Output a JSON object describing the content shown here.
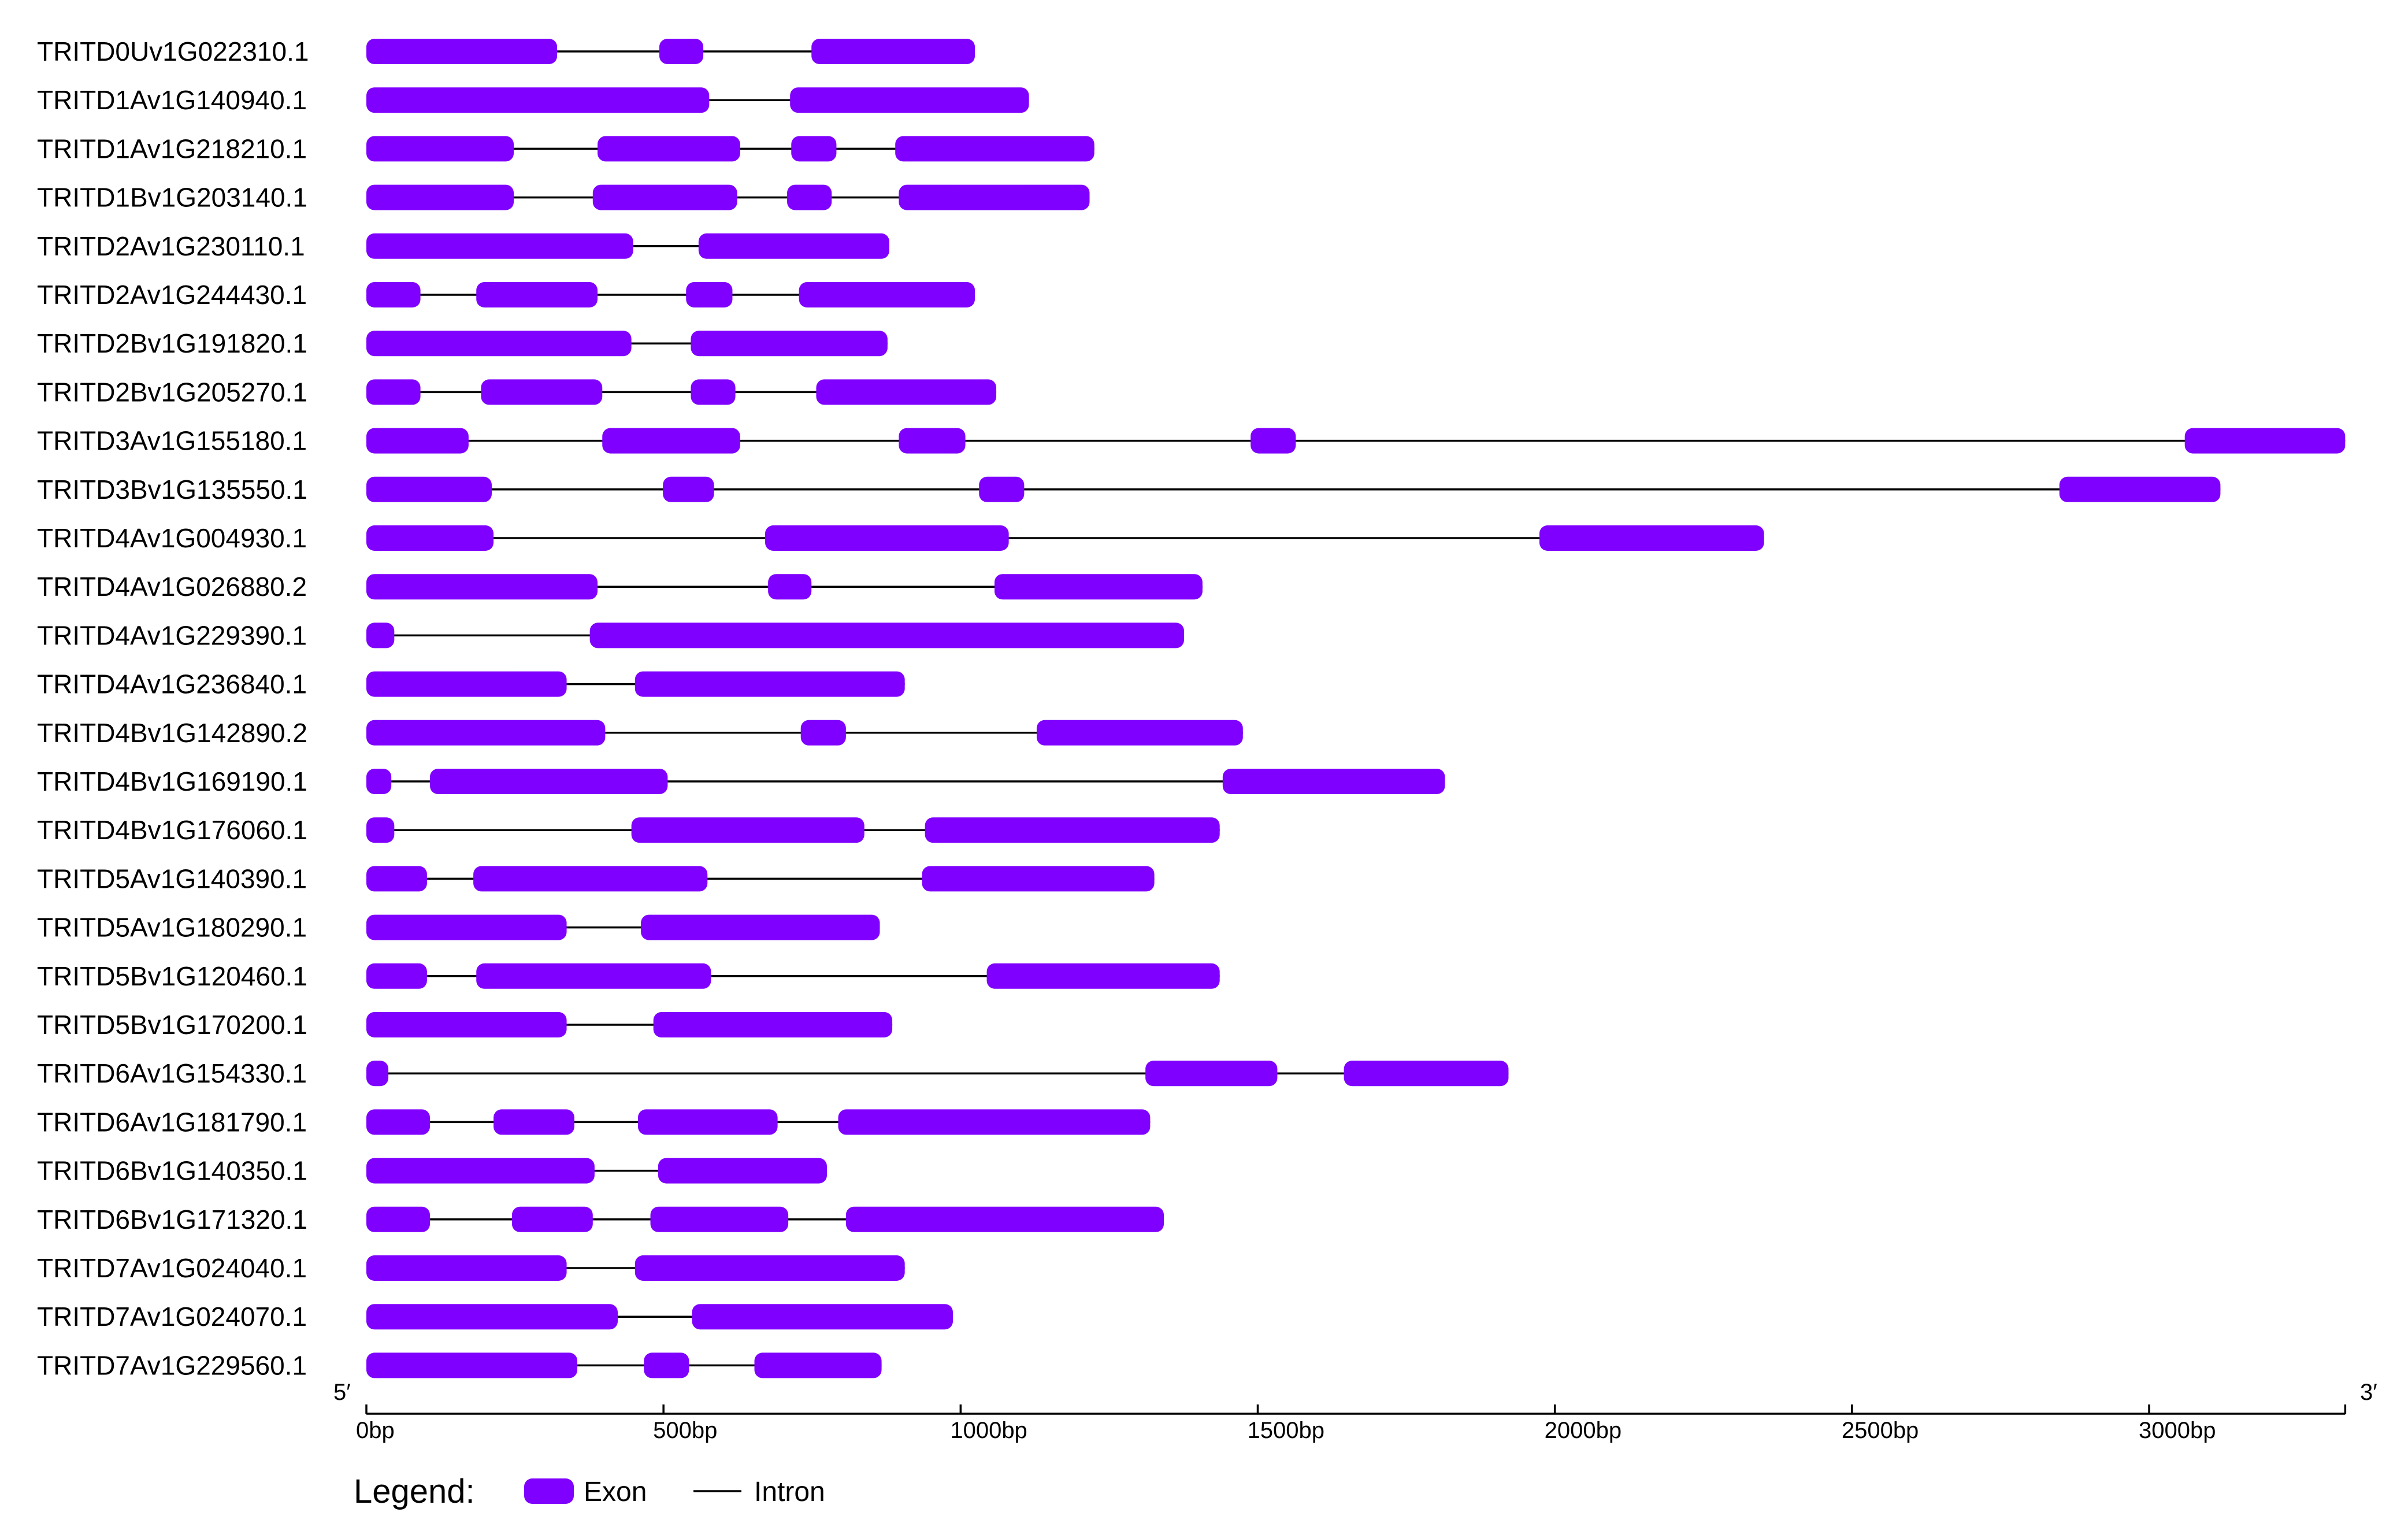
{
  "genes": [
    {
      "id": "TRITD0Uv1G022310.1",
      "exons": [
        [
          0,
          321
        ],
        [
          493,
          567
        ],
        [
          749,
          1024
        ]
      ]
    },
    {
      "id": "TRITD1Av1G140940.1",
      "exons": [
        [
          0,
          577
        ],
        [
          713,
          1115
        ]
      ]
    },
    {
      "id": "TRITD1Av1G218210.1",
      "exons": [
        [
          0,
          248
        ],
        [
          389,
          629
        ],
        [
          715,
          791
        ],
        [
          890,
          1225
        ]
      ]
    },
    {
      "id": "TRITD1Bv1G203140.1",
      "exons": [
        [
          0,
          248
        ],
        [
          381,
          624
        ],
        [
          708,
          783
        ],
        [
          896,
          1217
        ]
      ]
    },
    {
      "id": "TRITD2Av1G230110.1",
      "exons": [
        [
          0,
          449
        ],
        [
          559,
          880
        ]
      ]
    },
    {
      "id": "TRITD2Av1G244430.1",
      "exons": [
        [
          0,
          91
        ],
        [
          185,
          389
        ],
        [
          538,
          616
        ],
        [
          728,
          1024
        ]
      ]
    },
    {
      "id": "TRITD2Bv1G191820.1",
      "exons": [
        [
          0,
          446
        ],
        [
          546,
          877
        ]
      ]
    },
    {
      "id": "TRITD2Bv1G205270.1",
      "exons": [
        [
          0,
          91
        ],
        [
          193,
          397
        ],
        [
          546,
          621
        ],
        [
          757,
          1060
        ]
      ]
    },
    {
      "id": "TRITD3Av1G155180.1",
      "exons": [
        [
          0,
          172
        ],
        [
          397,
          629
        ],
        [
          896,
          1008
        ],
        [
          1488,
          1564
        ],
        [
          3060,
          3330
        ]
      ]
    },
    {
      "id": "TRITD3Bv1G135550.1",
      "exons": [
        [
          0,
          211
        ],
        [
          499,
          585
        ],
        [
          1031,
          1107
        ],
        [
          2849,
          3120
        ]
      ]
    },
    {
      "id": "TRITD4Av1G004930.1",
      "exons": [
        [
          0,
          214
        ],
        [
          671,
          1081
        ],
        [
          1974,
          2352
        ]
      ]
    },
    {
      "id": "TRITD4Av1G026880.2",
      "exons": [
        [
          0,
          389
        ],
        [
          676,
          749
        ],
        [
          1057,
          1407
        ]
      ]
    },
    {
      "id": "TRITD4Av1G229390.1",
      "exons": [
        [
          0,
          47
        ],
        [
          376,
          1376
        ]
      ]
    },
    {
      "id": "TRITD4Av1G236840.1",
      "exons": [
        [
          0,
          337
        ],
        [
          452,
          906
        ]
      ]
    },
    {
      "id": "TRITD4Bv1G142890.2",
      "exons": [
        [
          0,
          402
        ],
        [
          731,
          807
        ],
        [
          1128,
          1475
        ]
      ]
    },
    {
      "id": "TRITD4Bv1G169190.1",
      "exons": [
        [
          0,
          42
        ],
        [
          107,
          507
        ],
        [
          1441,
          1815
        ]
      ]
    },
    {
      "id": "TRITD4Bv1G176060.1",
      "exons": [
        [
          0,
          47
        ],
        [
          446,
          838
        ],
        [
          940,
          1436
        ]
      ]
    },
    {
      "id": "TRITD5Av1G140390.1",
      "exons": [
        [
          0,
          102
        ],
        [
          180,
          574
        ],
        [
          935,
          1326
        ]
      ]
    },
    {
      "id": "TRITD5Av1G180290.1",
      "exons": [
        [
          0,
          337
        ],
        [
          462,
          864
        ]
      ]
    },
    {
      "id": "TRITD5Bv1G120460.1",
      "exons": [
        [
          0,
          102
        ],
        [
          185,
          580
        ],
        [
          1044,
          1436
        ]
      ]
    },
    {
      "id": "TRITD5Bv1G170200.1",
      "exons": [
        [
          0,
          337
        ],
        [
          483,
          885
        ]
      ]
    },
    {
      "id": "TRITD6Av1G154330.1",
      "exons": [
        [
          0,
          37
        ],
        [
          1311,
          1533
        ],
        [
          1645,
          1922
        ]
      ]
    },
    {
      "id": "TRITD6Av1G181790.1",
      "exons": [
        [
          0,
          107
        ],
        [
          214,
          350
        ],
        [
          457,
          692
        ],
        [
          794,
          1319
        ]
      ]
    },
    {
      "id": "TRITD6Bv1G140350.1",
      "exons": [
        [
          0,
          384
        ],
        [
          491,
          775
        ]
      ]
    },
    {
      "id": "TRITD6Bv1G171320.1",
      "exons": [
        [
          0,
          107
        ],
        [
          245,
          381
        ],
        [
          478,
          710
        ],
        [
          807,
          1342
        ]
      ]
    },
    {
      "id": "TRITD7Av1G024040.1",
      "exons": [
        [
          0,
          337
        ],
        [
          452,
          906
        ]
      ]
    },
    {
      "id": "TRITD7Av1G024070.1",
      "exons": [
        [
          0,
          423
        ],
        [
          548,
          987
        ]
      ]
    },
    {
      "id": "TRITD7Av1G229560.1",
      "exons": [
        [
          0,
          355
        ],
        [
          467,
          543
        ],
        [
          653,
          867
        ]
      ]
    }
  ],
  "axis": {
    "range": [
      0,
      3330
    ],
    "ticks": [
      0,
      500,
      1000,
      1500,
      2000,
      2500,
      3000
    ],
    "tick_labels": [
      "0bp",
      "500bp",
      "1000bp",
      "1500bp",
      "2000bp",
      "2500bp",
      "3000bp"
    ],
    "five_prime": "5′",
    "three_prime": "3′"
  },
  "legend": {
    "title": "Legend:",
    "exon_label": "Exon",
    "intron_label": "Intron"
  },
  "colors": {
    "exon": "#8000ff",
    "intron": "#000000",
    "axis": "#000000"
  }
}
